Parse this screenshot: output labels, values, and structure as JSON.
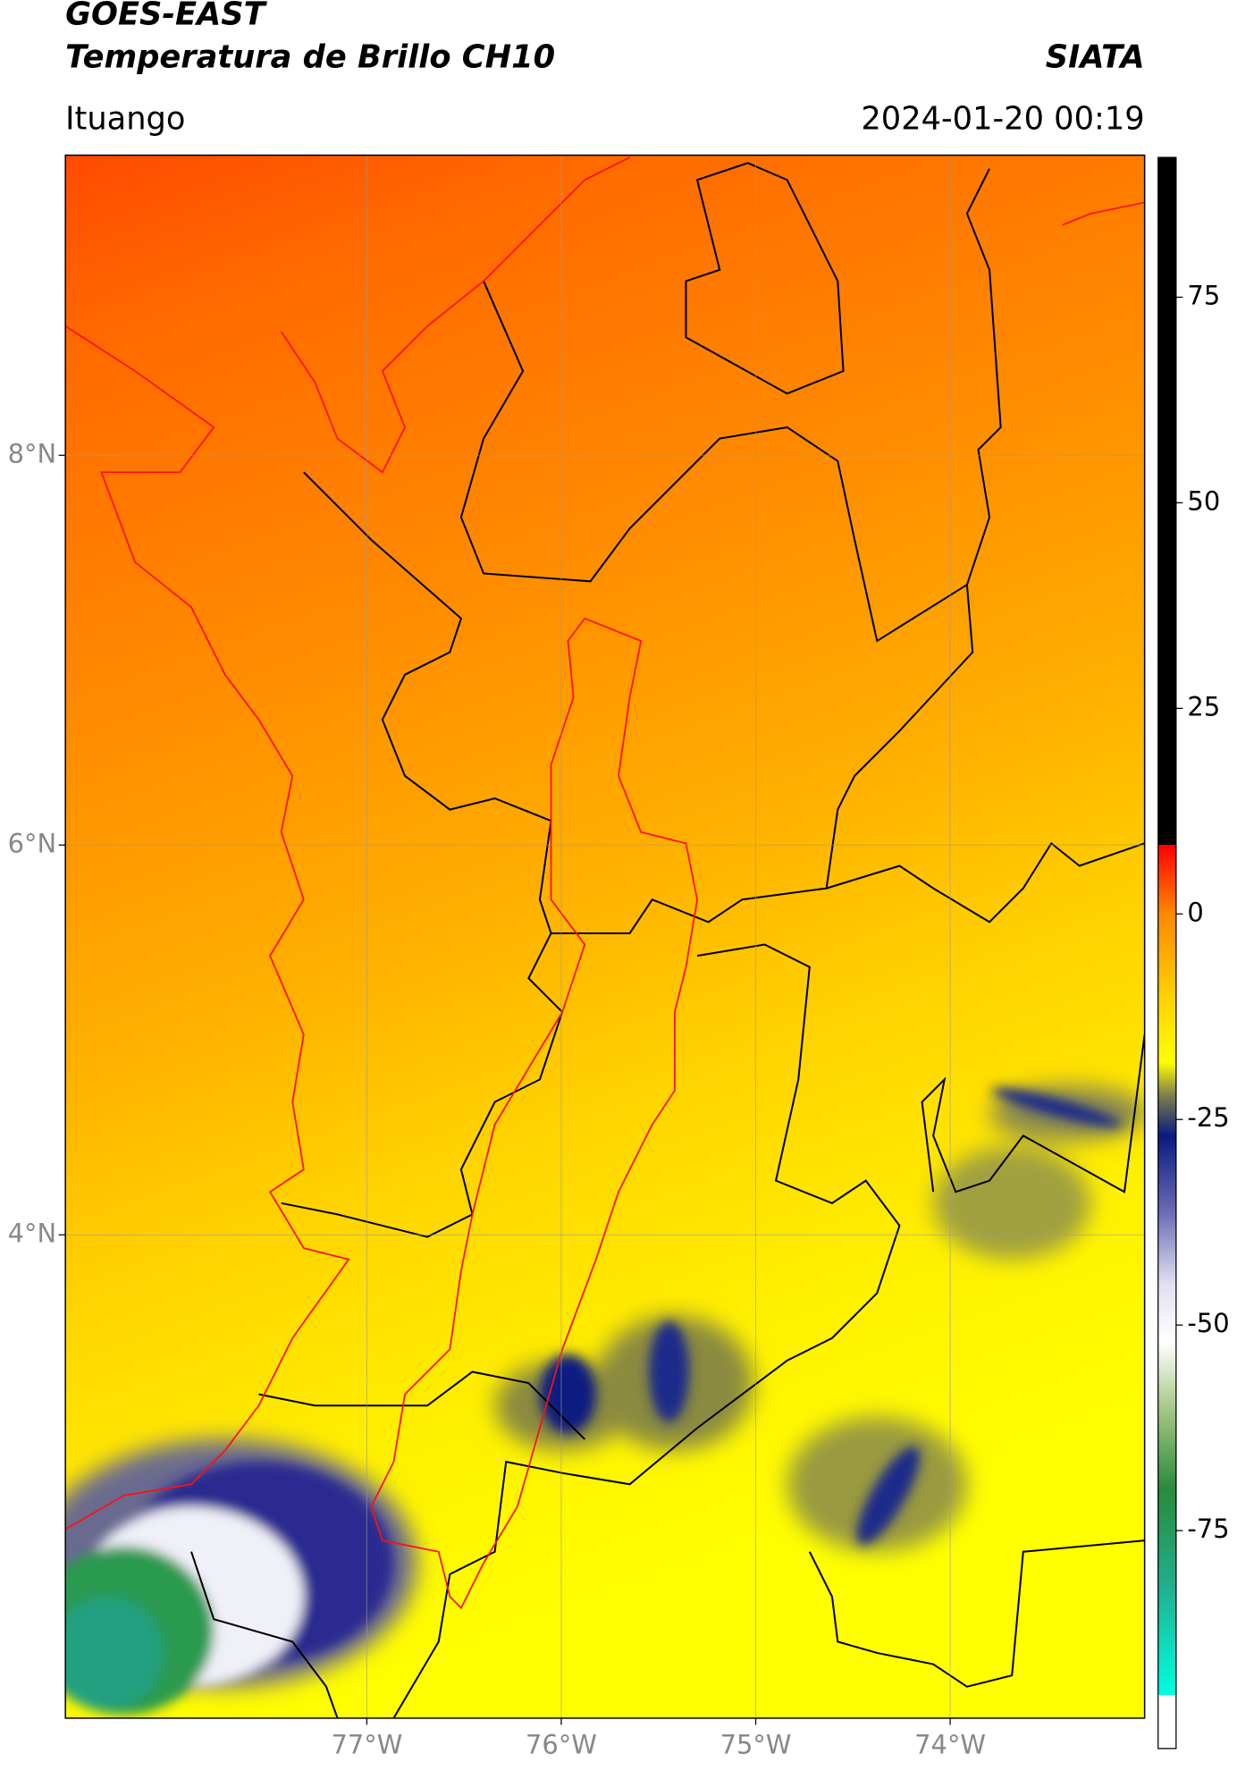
{
  "chart_data": {
    "type": "map",
    "title": "GOES-EAST",
    "subtitle": "Temperatura de Brillo CH10",
    "source": "SIATA",
    "location": "Ituango",
    "datetime": "2024-01-20 00:19",
    "xlim": [
      -78.55,
      -73.0
    ],
    "ylim": [
      1.52,
      9.54
    ],
    "xticks": [
      {
        "value": -77,
        "label": "77°W"
      },
      {
        "value": -76,
        "label": "76°W"
      },
      {
        "value": -75,
        "label": "75°W"
      },
      {
        "value": -74,
        "label": "74°W"
      }
    ],
    "yticks": [
      {
        "value": 8,
        "label": "8°N"
      },
      {
        "value": 6,
        "label": "6°N"
      },
      {
        "value": 4,
        "label": "4°N"
      }
    ],
    "grid": true,
    "colorbar": {
      "lim": [
        -101.5,
        92
      ],
      "ticks": [
        75,
        50,
        25,
        0,
        -25,
        -50,
        -75
      ],
      "stops": [
        {
          "value": 92,
          "color": "#000000"
        },
        {
          "value": 8.4,
          "color": "#000000"
        },
        {
          "value": 8.4,
          "color": "#ff0000"
        },
        {
          "value": 0,
          "color": "#ff8800"
        },
        {
          "value": -10,
          "color": "#ffd000"
        },
        {
          "value": -18,
          "color": "#ffff00"
        },
        {
          "value": -22,
          "color": "#80804a"
        },
        {
          "value": -27,
          "color": "#0a1a80"
        },
        {
          "value": -36,
          "color": "#6868b4"
        },
        {
          "value": -45,
          "color": "#e0e0f0"
        },
        {
          "value": -52,
          "color": "#ffffff"
        },
        {
          "value": -60,
          "color": "#a8c888"
        },
        {
          "value": -70,
          "color": "#2a8a3a"
        },
        {
          "value": -82,
          "color": "#20b090"
        },
        {
          "value": -95,
          "color": "#00ffe0"
        },
        {
          "value": -95,
          "color": "#ffffff"
        },
        {
          "value": -101.5,
          "color": "#ffffff"
        }
      ]
    }
  }
}
